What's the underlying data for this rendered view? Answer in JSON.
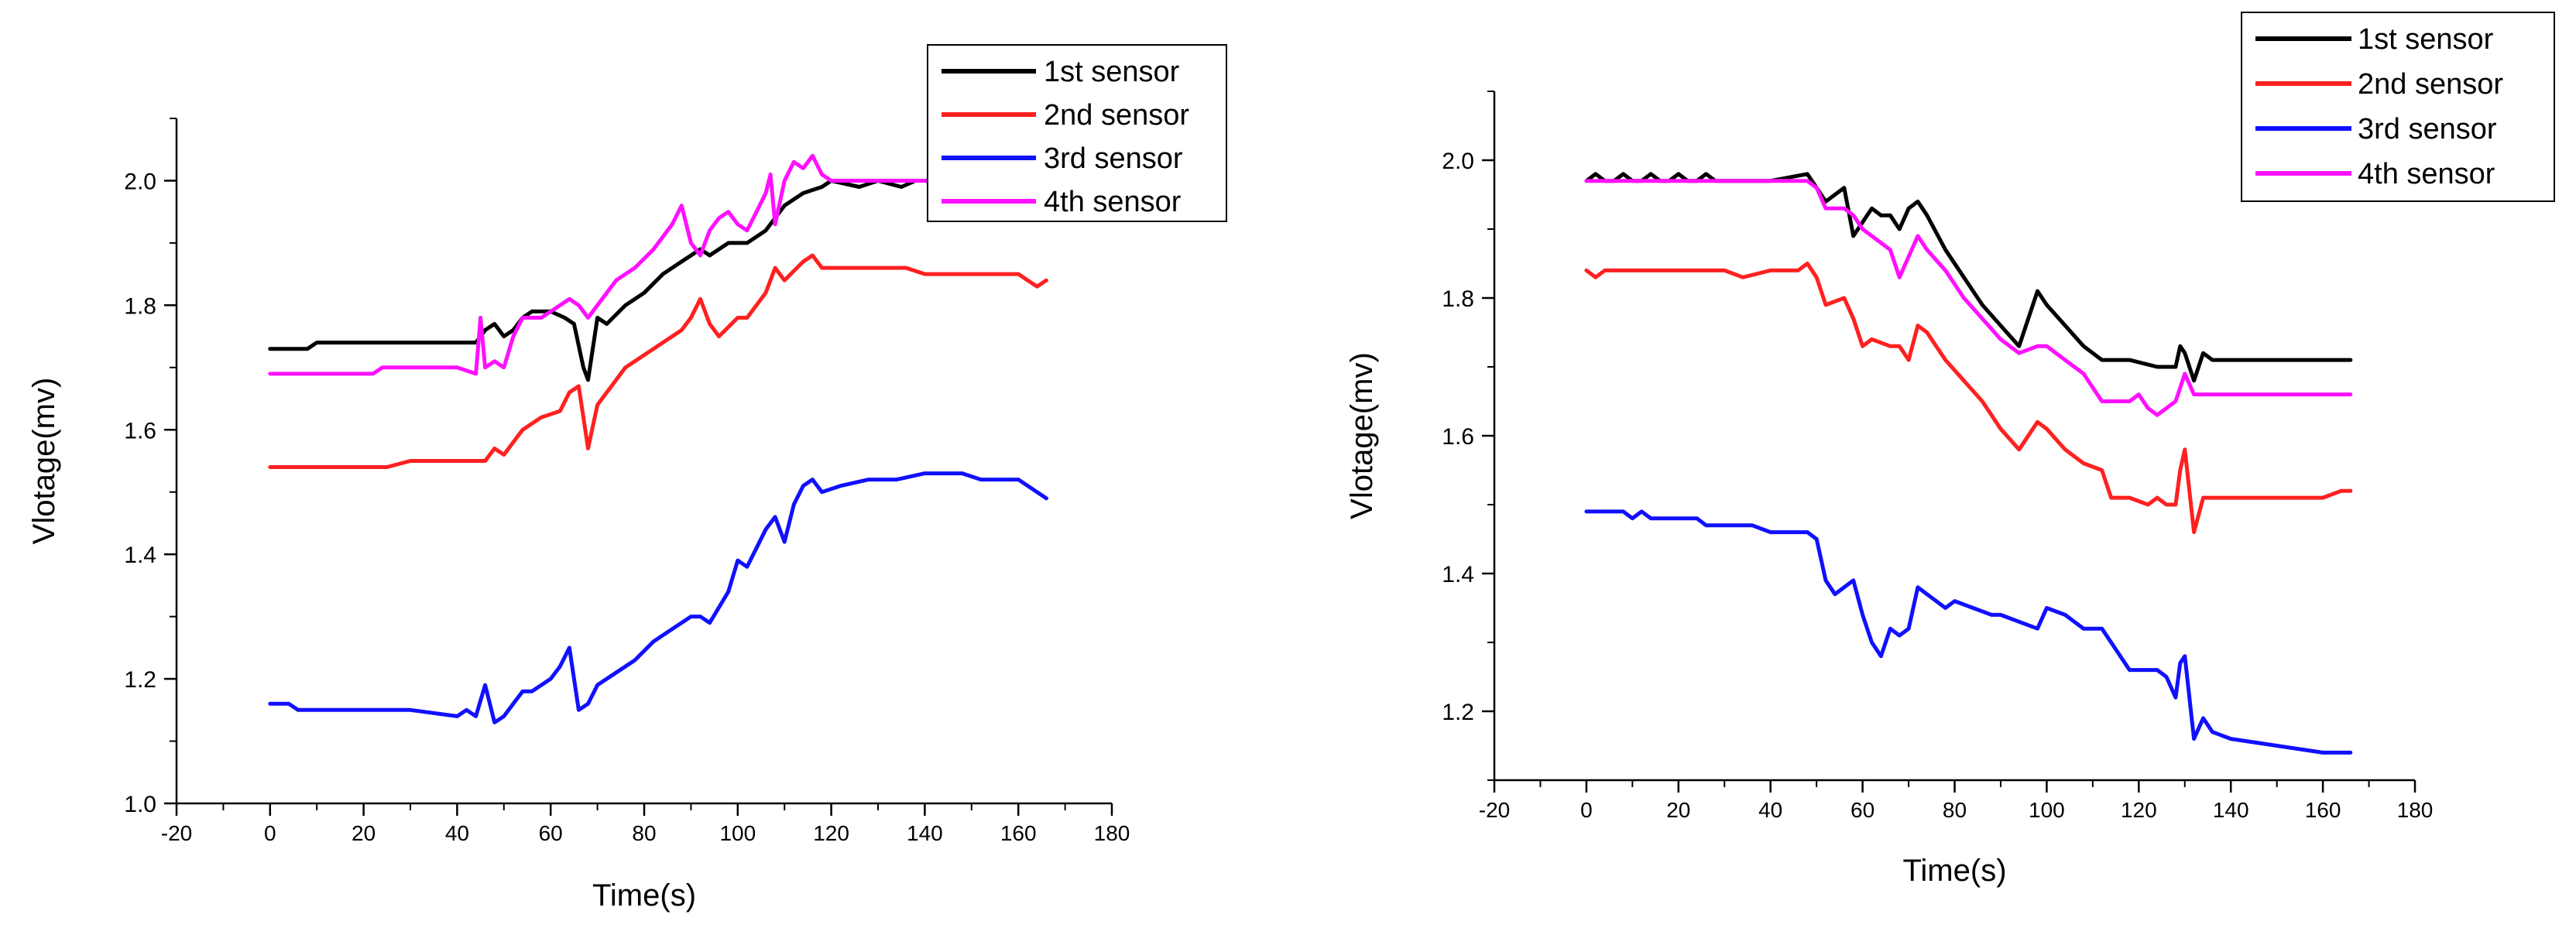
{
  "chart_data": [
    {
      "type": "line",
      "title": "",
      "xlabel": "Time(s)",
      "ylabel": "Vlotage(mv)",
      "xlim": [
        -20,
        180
      ],
      "ylim": [
        1.0,
        2.1
      ],
      "xticks": [
        -20,
        0,
        20,
        40,
        60,
        80,
        100,
        120,
        140,
        160,
        180
      ],
      "yticks": [
        1.0,
        1.2,
        1.4,
        1.6,
        1.8,
        2.0
      ],
      "xtick_labels": [
        "-20",
        "0",
        "20",
        "40",
        "60",
        "80",
        "100",
        "120",
        "140",
        "160",
        "180"
      ],
      "ytick_labels": [
        "1.0",
        "1.2",
        "1.4",
        "1.6",
        "1.8",
        "2.0"
      ],
      "legend": "top-right",
      "grid": false,
      "series": [
        {
          "name": "1st  sensor",
          "color": "#000000",
          "x": [
            0,
            8,
            10,
            20,
            30,
            40,
            44,
            46,
            48,
            50,
            52,
            54,
            56,
            60,
            63,
            65,
            67,
            68,
            70,
            72,
            76,
            80,
            84,
            88,
            90,
            92,
            94,
            98,
            102,
            106,
            110,
            114,
            118,
            120,
            126,
            130,
            135,
            138,
            142,
            145
          ],
          "y": [
            1.73,
            1.73,
            1.74,
            1.74,
            1.74,
            1.74,
            1.74,
            1.76,
            1.77,
            1.75,
            1.76,
            1.78,
            1.79,
            1.79,
            1.78,
            1.77,
            1.7,
            1.68,
            1.78,
            1.77,
            1.8,
            1.82,
            1.85,
            1.87,
            1.88,
            1.89,
            1.88,
            1.9,
            1.9,
            1.92,
            1.96,
            1.98,
            1.99,
            2.0,
            1.99,
            2.0,
            1.99,
            2.0,
            2.0,
            1.99
          ]
        },
        {
          "name": "2nd sensor",
          "color": "#ff2020",
          "x": [
            0,
            10,
            20,
            25,
            30,
            40,
            44,
            46,
            48,
            50,
            54,
            58,
            62,
            64,
            66,
            67,
            68,
            70,
            72,
            76,
            80,
            84,
            88,
            90,
            92,
            94,
            96,
            100,
            102,
            106,
            108,
            110,
            114,
            116,
            118,
            120,
            125,
            130,
            136,
            140,
            145,
            150,
            155,
            160,
            162,
            164,
            166
          ],
          "y": [
            1.54,
            1.54,
            1.54,
            1.54,
            1.55,
            1.55,
            1.55,
            1.55,
            1.57,
            1.56,
            1.6,
            1.62,
            1.63,
            1.66,
            1.67,
            1.62,
            1.57,
            1.64,
            1.66,
            1.7,
            1.72,
            1.74,
            1.76,
            1.78,
            1.81,
            1.77,
            1.75,
            1.78,
            1.78,
            1.82,
            1.86,
            1.84,
            1.87,
            1.88,
            1.86,
            1.86,
            1.86,
            1.86,
            1.86,
            1.85,
            1.85,
            1.85,
            1.85,
            1.85,
            1.84,
            1.83,
            1.84
          ]
        },
        {
          "name": "3rd  sensor",
          "color": "#1010ff",
          "x": [
            0,
            4,
            6,
            10,
            20,
            30,
            40,
            42,
            44,
            46,
            48,
            50,
            52,
            54,
            56,
            60,
            62,
            64,
            66,
            68,
            70,
            74,
            78,
            82,
            86,
            90,
            92,
            94,
            98,
            100,
            102,
            104,
            106,
            108,
            110,
            112,
            114,
            116,
            118,
            122,
            128,
            134,
            140,
            144,
            148,
            152,
            156,
            160,
            162,
            166
          ],
          "y": [
            1.16,
            1.16,
            1.15,
            1.15,
            1.15,
            1.15,
            1.14,
            1.15,
            1.14,
            1.19,
            1.13,
            1.14,
            1.16,
            1.18,
            1.18,
            1.2,
            1.22,
            1.25,
            1.15,
            1.16,
            1.19,
            1.21,
            1.23,
            1.26,
            1.28,
            1.3,
            1.3,
            1.29,
            1.34,
            1.39,
            1.38,
            1.41,
            1.44,
            1.46,
            1.42,
            1.48,
            1.51,
            1.52,
            1.5,
            1.51,
            1.52,
            1.52,
            1.53,
            1.53,
            1.53,
            1.52,
            1.52,
            1.52,
            1.51,
            1.49
          ]
        },
        {
          "name": "4th  sensor",
          "color": "#ff10ff",
          "x": [
            0,
            10,
            20,
            22,
            24,
            30,
            40,
            44,
            45,
            46,
            48,
            50,
            52,
            54,
            58,
            62,
            64,
            66,
            68,
            70,
            74,
            78,
            82,
            86,
            88,
            90,
            92,
            94,
            96,
            98,
            100,
            102,
            104,
            106,
            107,
            108,
            110,
            112,
            114,
            116,
            118,
            120,
            124,
            128,
            130,
            134,
            140,
            145
          ],
          "y": [
            1.69,
            1.69,
            1.69,
            1.69,
            1.7,
            1.7,
            1.7,
            1.69,
            1.78,
            1.7,
            1.71,
            1.7,
            1.75,
            1.78,
            1.78,
            1.8,
            1.81,
            1.8,
            1.78,
            1.8,
            1.84,
            1.86,
            1.89,
            1.93,
            1.96,
            1.9,
            1.88,
            1.92,
            1.94,
            1.95,
            1.93,
            1.92,
            1.95,
            1.98,
            2.01,
            1.93,
            2.0,
            2.03,
            2.02,
            2.04,
            2.01,
            2.0,
            2.0,
            2.0,
            2.0,
            2.0,
            2.0,
            1.99
          ]
        }
      ]
    },
    {
      "type": "line",
      "title": "",
      "xlabel": "Time(s)",
      "ylabel": "Vlotage(mv)",
      "xlim": [
        -20,
        180
      ],
      "ylim": [
        1.1,
        2.1
      ],
      "xticks": [
        -20,
        0,
        20,
        40,
        60,
        80,
        100,
        120,
        140,
        160,
        180
      ],
      "yticks": [
        1.2,
        1.4,
        1.6,
        1.8,
        2.0
      ],
      "xtick_labels": [
        "-20",
        "0",
        "20",
        "40",
        "60",
        "80",
        "100",
        "120",
        "140",
        "160",
        "180"
      ],
      "ytick_labels": [
        "1.2",
        "1.4",
        "1.6",
        "1.8",
        "2.0"
      ],
      "legend": "top-right",
      "grid": false,
      "series": [
        {
          "name": "1st  sensor",
          "color": "#000000",
          "x": [
            0,
            2,
            4,
            6,
            8,
            10,
            12,
            14,
            16,
            18,
            20,
            22,
            24,
            26,
            28,
            30,
            40,
            48,
            50,
            52,
            54,
            56,
            58,
            60,
            62,
            64,
            66,
            68,
            70,
            72,
            74,
            78,
            82,
            86,
            90,
            94,
            98,
            100,
            104,
            108,
            112,
            118,
            124,
            128,
            129,
            130,
            132,
            134,
            136,
            140,
            150,
            160,
            166
          ],
          "y": [
            1.97,
            1.98,
            1.97,
            1.97,
            1.98,
            1.97,
            1.97,
            1.98,
            1.97,
            1.97,
            1.98,
            1.97,
            1.97,
            1.98,
            1.97,
            1.97,
            1.97,
            1.98,
            1.96,
            1.94,
            1.95,
            1.96,
            1.89,
            1.91,
            1.93,
            1.92,
            1.92,
            1.9,
            1.93,
            1.94,
            1.92,
            1.87,
            1.83,
            1.79,
            1.76,
            1.73,
            1.81,
            1.79,
            1.76,
            1.73,
            1.71,
            1.71,
            1.7,
            1.7,
            1.73,
            1.72,
            1.68,
            1.72,
            1.71,
            1.71,
            1.71,
            1.71,
            1.71
          ]
        },
        {
          "name": "2nd sensor",
          "color": "#ff2020",
          "x": [
            0,
            2,
            4,
            10,
            20,
            30,
            34,
            40,
            46,
            48,
            50,
            52,
            56,
            58,
            60,
            62,
            66,
            68,
            70,
            72,
            74,
            78,
            82,
            86,
            88,
            90,
            94,
            98,
            100,
            104,
            106,
            108,
            112,
            114,
            118,
            122,
            124,
            126,
            128,
            129,
            130,
            131,
            132,
            134,
            136,
            140,
            150,
            160,
            164,
            166
          ],
          "y": [
            1.84,
            1.83,
            1.84,
            1.84,
            1.84,
            1.84,
            1.83,
            1.84,
            1.84,
            1.85,
            1.83,
            1.79,
            1.8,
            1.77,
            1.73,
            1.74,
            1.73,
            1.73,
            1.71,
            1.76,
            1.75,
            1.71,
            1.68,
            1.65,
            1.63,
            1.61,
            1.58,
            1.62,
            1.61,
            1.58,
            1.57,
            1.56,
            1.55,
            1.51,
            1.51,
            1.5,
            1.51,
            1.5,
            1.5,
            1.55,
            1.58,
            1.52,
            1.46,
            1.51,
            1.51,
            1.51,
            1.51,
            1.51,
            1.52,
            1.52
          ]
        },
        {
          "name": "3rd  sensor",
          "color": "#1010ff",
          "x": [
            0,
            4,
            8,
            10,
            12,
            14,
            20,
            24,
            26,
            30,
            36,
            40,
            44,
            48,
            50,
            52,
            54,
            56,
            58,
            60,
            62,
            64,
            66,
            68,
            70,
            72,
            74,
            78,
            80,
            84,
            88,
            90,
            94,
            98,
            100,
            104,
            108,
            112,
            114,
            118,
            122,
            124,
            126,
            128,
            129,
            130,
            132,
            134,
            136,
            140,
            150,
            160,
            166
          ],
          "y": [
            1.49,
            1.49,
            1.49,
            1.48,
            1.49,
            1.48,
            1.48,
            1.48,
            1.47,
            1.47,
            1.47,
            1.46,
            1.46,
            1.46,
            1.45,
            1.39,
            1.37,
            1.38,
            1.39,
            1.34,
            1.3,
            1.28,
            1.32,
            1.31,
            1.32,
            1.38,
            1.37,
            1.35,
            1.36,
            1.35,
            1.34,
            1.34,
            1.33,
            1.32,
            1.35,
            1.34,
            1.32,
            1.32,
            1.3,
            1.26,
            1.26,
            1.26,
            1.25,
            1.22,
            1.27,
            1.28,
            1.16,
            1.19,
            1.17,
            1.16,
            1.15,
            1.14,
            1.14
          ]
        },
        {
          "name": "4th  sensor",
          "color": "#ff10ff",
          "x": [
            0,
            10,
            20,
            30,
            40,
            48,
            50,
            52,
            56,
            58,
            60,
            62,
            66,
            68,
            70,
            72,
            74,
            78,
            82,
            86,
            90,
            94,
            98,
            100,
            104,
            108,
            112,
            118,
            120,
            122,
            124,
            126,
            128,
            130,
            132,
            134,
            140,
            150,
            160,
            166
          ],
          "y": [
            1.97,
            1.97,
            1.97,
            1.97,
            1.97,
            1.97,
            1.96,
            1.93,
            1.93,
            1.92,
            1.9,
            1.89,
            1.87,
            1.83,
            1.86,
            1.89,
            1.87,
            1.84,
            1.8,
            1.77,
            1.74,
            1.72,
            1.73,
            1.73,
            1.71,
            1.69,
            1.65,
            1.65,
            1.66,
            1.64,
            1.63,
            1.64,
            1.65,
            1.69,
            1.66,
            1.66,
            1.66,
            1.66,
            1.66,
            1.66
          ]
        }
      ]
    }
  ]
}
